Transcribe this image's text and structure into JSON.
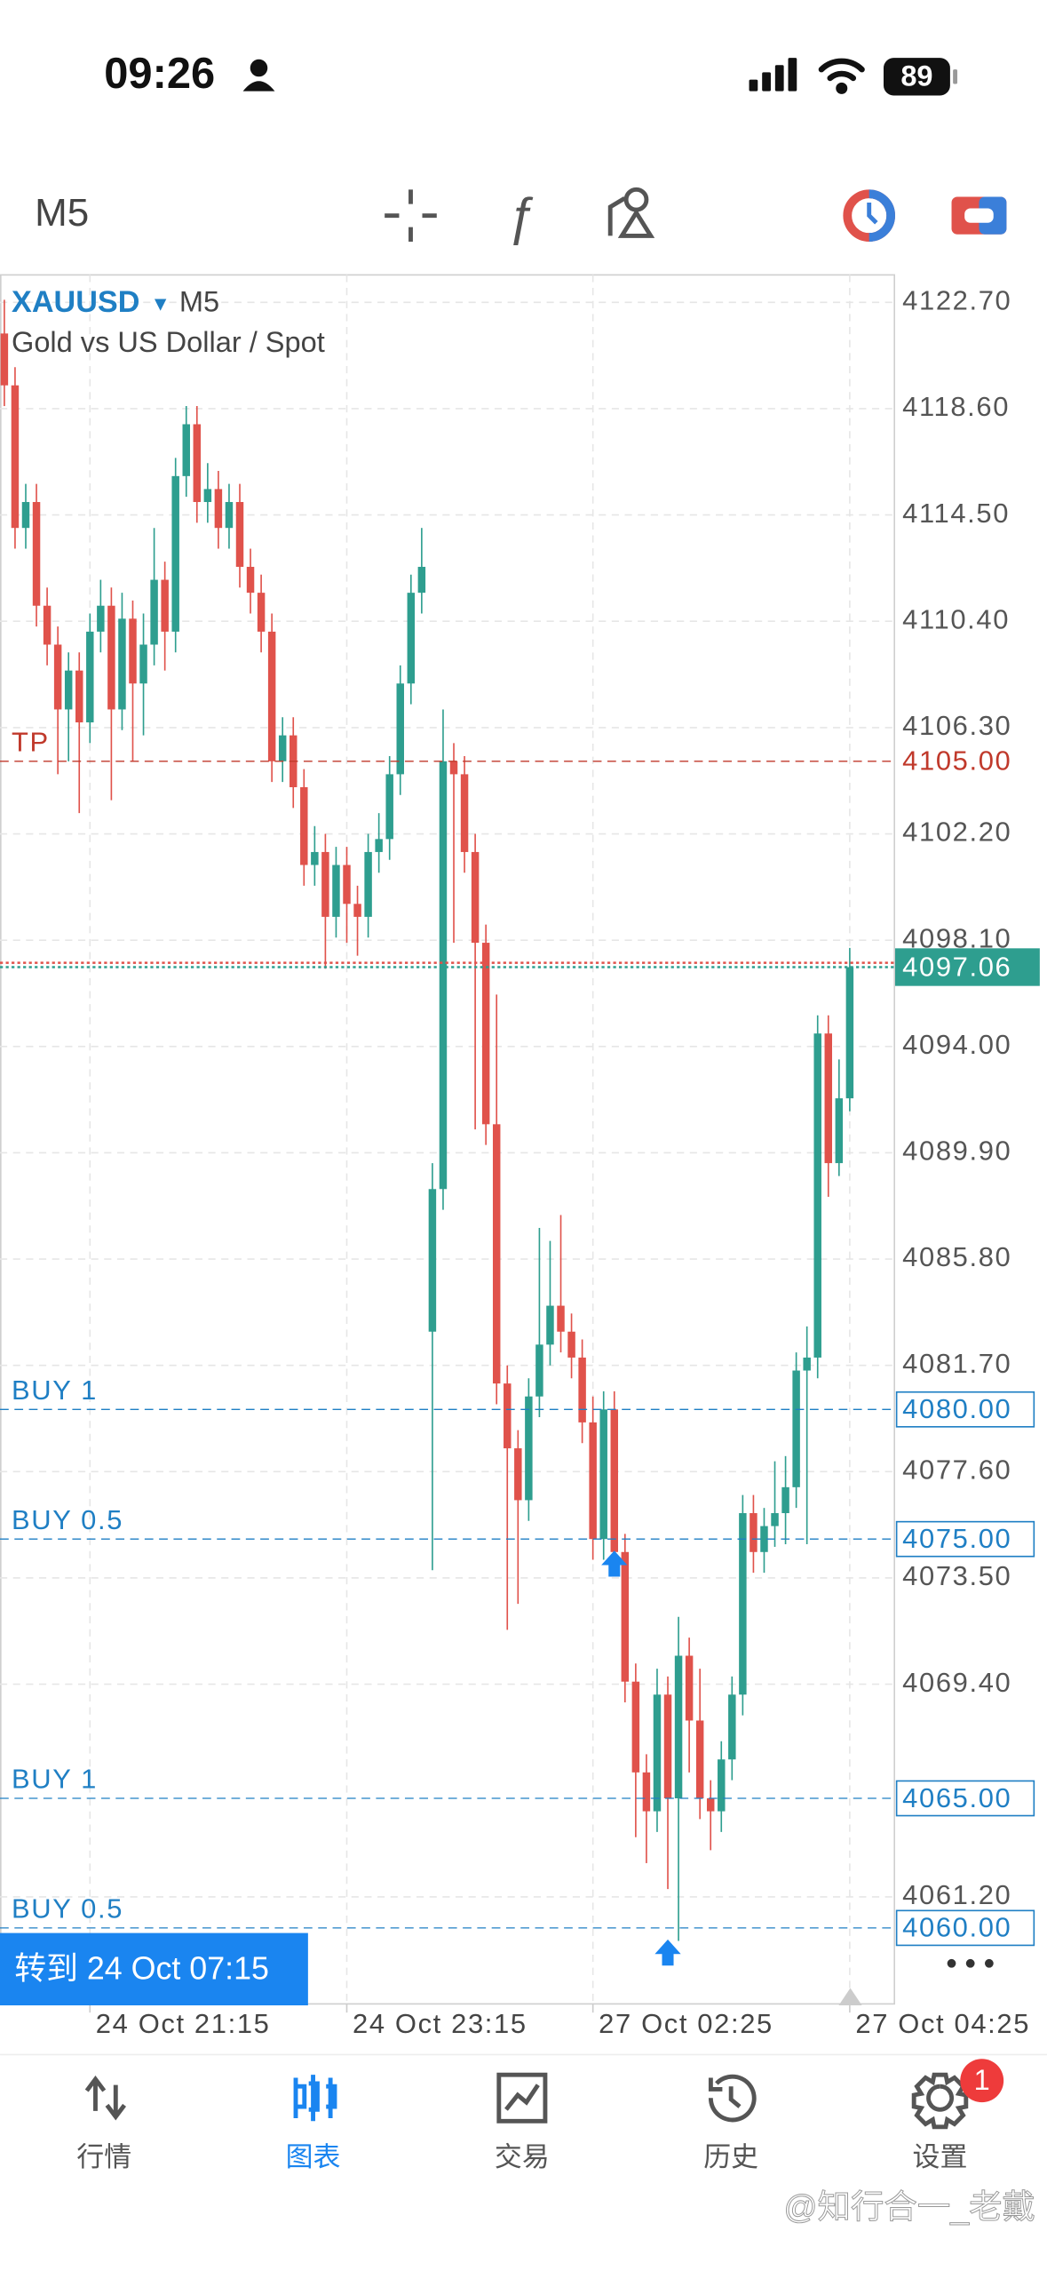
{
  "status_bar": {
    "time": "09:26",
    "battery": "89"
  },
  "toolbar": {
    "timeframe": "M5"
  },
  "chart_data": {
    "type": "candlestick",
    "title": "XAUUSD",
    "timeframe": "M5",
    "subtitle": "Gold vs US Dollar / Spot",
    "up_color": "#2e9e8f",
    "down_color": "#e0524b",
    "grid": true,
    "ylim": [
      4057.07,
      4123.76
    ],
    "yticks": [
      {
        "value": 4122.7,
        "label": "4122.70"
      },
      {
        "value": 4118.6,
        "label": "4118.60"
      },
      {
        "value": 4114.5,
        "label": "4114.50"
      },
      {
        "value": 4110.4,
        "label": "4110.40"
      },
      {
        "value": 4106.3,
        "label": "4106.30"
      },
      {
        "value": 4102.2,
        "label": "4102.20"
      },
      {
        "value": 4098.1,
        "label": "4098.10"
      },
      {
        "value": 4094,
        "label": "4094.00"
      },
      {
        "value": 4089.9,
        "label": "4089.90"
      },
      {
        "value": 4085.8,
        "label": "4085.80"
      },
      {
        "value": 4081.7,
        "label": "4081.70"
      },
      {
        "value": 4077.6,
        "label": "4077.60"
      },
      {
        "value": 4073.5,
        "label": "4073.50"
      },
      {
        "value": 4069.4,
        "label": "4069.40"
      },
      {
        "value": 4061.2,
        "label": "4061.20"
      }
    ],
    "xticks": [
      {
        "value": 8,
        "label": "24 Oct 21:15"
      },
      {
        "value": 32,
        "label": "24 Oct 23:15"
      },
      {
        "value": 55,
        "label": "27 Oct 02:25"
      },
      {
        "value": 79,
        "label": "27 Oct 04:25"
      }
    ],
    "open": [
      4121.5,
      4119.5,
      4114,
      4115,
      4111,
      4109.5,
      4107,
      4108.5,
      4106.5,
      4110,
      4111,
      4107,
      4110.5,
      4108,
      4109.5,
      4112,
      4110,
      4116,
      4118,
      4115,
      4115.5,
      4114,
      4115,
      4112.5,
      4111.5,
      4110,
      4105,
      4106,
      4104,
      4101,
      4101.5,
      4099,
      4101,
      4099.5,
      4099,
      4101.5,
      4102,
      4104.5,
      4108,
      4111.5,
      4083,
      4088.5,
      4105,
      4104.5,
      4101.5,
      4098,
      4091,
      4081,
      4078.5,
      4076.5,
      4080.5,
      4082.5,
      4084,
      4083,
      4082,
      4079.5,
      4075,
      4080,
      4074.5,
      4069.5,
      4066,
      4064.5,
      4069,
      4065,
      4070.5,
      4068,
      4065,
      4064.5,
      4066.5,
      4069,
      4076,
      4074.5,
      4075.5,
      4076,
      4077,
      4081.5,
      4082,
      4094.5,
      4089.5,
      4092
    ],
    "high": [
      4122.8,
      4120.2,
      4115.7,
      4115.7,
      4111.7,
      4110.2,
      4109.2,
      4109.2,
      4110.7,
      4112,
      4111.7,
      4111.5,
      4111.2,
      4110.7,
      4114,
      4112.7,
      4116.7,
      4118.7,
      4118.7,
      4116.5,
      4116.2,
      4115.7,
      4115.7,
      4113.2,
      4112.2,
      4110.7,
      4106.7,
      4106.7,
      4104.7,
      4102.5,
      4102.2,
      4101.7,
      4101.7,
      4100.2,
      4102.2,
      4103,
      4105.2,
      4108.7,
      4112.2,
      4114,
      4089.5,
      4107,
      4105.7,
      4105.2,
      4102.2,
      4098.7,
      4096,
      4081.7,
      4079.2,
      4081.2,
      4087,
      4086.5,
      4087.5,
      4083.7,
      4082.7,
      4080.5,
      4080.7,
      4080.7,
      4075.2,
      4070.2,
      4066.7,
      4070,
      4069.7,
      4072,
      4071.2,
      4070,
      4065.7,
      4067.2,
      4069.7,
      4076.7,
      4076.7,
      4076.2,
      4078,
      4078.2,
      4082.2,
      4083.2,
      4095.2,
      4095.2,
      4093.5,
      4097.8
    ],
    "low": [
      4118.7,
      4113.2,
      4113.2,
      4110.2,
      4108.7,
      4104.5,
      4105,
      4103,
      4105.7,
      4109.2,
      4103.5,
      4106.2,
      4105,
      4106,
      4108.7,
      4108.5,
      4109.2,
      4115.2,
      4114.2,
      4114.2,
      4113.2,
      4113.2,
      4111.7,
      4110.7,
      4109.2,
      4104.2,
      4104.2,
      4103.2,
      4100.2,
      4100.2,
      4097,
      4098.2,
      4098,
      4097.5,
      4098.2,
      4100.7,
      4101.2,
      4103.7,
      4107.2,
      4110.7,
      4073.8,
      4087.7,
      4098,
      4100.7,
      4090.8,
      4090.2,
      4080.2,
      4071.5,
      4072.5,
      4075.7,
      4079.7,
      4081.7,
      4082.2,
      4081.2,
      4078.7,
      4074.2,
      4074.2,
      4073.7,
      4068.7,
      4063.5,
      4062.5,
      4063.7,
      4061.5,
      4059.5,
      4066,
      4064.2,
      4063,
      4063.7,
      4065.7,
      4068.2,
      4073.7,
      4073.7,
      4074.7,
      4074.8,
      4076.2,
      4074.8,
      4081.2,
      4088.2,
      4089,
      4091.5
    ],
    "close": [
      4119.5,
      4114,
      4115,
      4111,
      4109.5,
      4107,
      4108.5,
      4106.5,
      4110,
      4111,
      4107,
      4110.5,
      4108,
      4109.5,
      4112,
      4110,
      4116,
      4118,
      4115,
      4115.5,
      4114,
      4115,
      4112.5,
      4111.5,
      4110,
      4105,
      4106,
      4104,
      4101,
      4101.5,
      4099,
      4101,
      4099.5,
      4099,
      4101.5,
      4102,
      4104.5,
      4108,
      4111.5,
      4112.5,
      4088.5,
      4105,
      4104.5,
      4101.5,
      4098,
      4091,
      4081,
      4078.5,
      4076.5,
      4080.5,
      4082.5,
      4084,
      4083,
      4082,
      4079.5,
      4075,
      4080,
      4074.5,
      4069.5,
      4066,
      4064.5,
      4069,
      4065,
      4070.5,
      4068,
      4065,
      4064.5,
      4066.5,
      4069,
      4076,
      4074.5,
      4075.5,
      4076,
      4077,
      4081.5,
      4082,
      4094.5,
      4089.5,
      4092,
      4097.06
    ],
    "last": 4097.06,
    "last_color": "#2e9e8f",
    "levels": [
      {
        "name": "TP",
        "value": 4105,
        "value_label": "4105.00",
        "color": "#c0392b",
        "boxed": false
      },
      {
        "name": "BUY 1",
        "value": 4080,
        "value_label": "4080.00",
        "color": "#1f7fc4",
        "boxed": true
      },
      {
        "name": "BUY 0.5",
        "value": 4075,
        "value_label": "4075.00",
        "color": "#1f7fc4",
        "boxed": true
      },
      {
        "name": "BUY 1",
        "value": 4065,
        "value_label": "4065.00",
        "color": "#1f7fc4",
        "boxed": true
      },
      {
        "name": "BUY 0.5",
        "value": 4060,
        "value_label": "4060.00",
        "color": "#1f7fc4",
        "boxed": true
      }
    ],
    "trades": [
      {
        "bar": 57,
        "price": 4075
      },
      {
        "bar": 62,
        "price": 4060
      }
    ],
    "goto_button": "转到 24 Oct 07:15"
  },
  "tabs": [
    {
      "label": "行情"
    },
    {
      "label": "图表"
    },
    {
      "label": "交易"
    },
    {
      "label": "历史"
    },
    {
      "label": "设置",
      "badge": 1
    }
  ],
  "active_tab": 1,
  "watermark": "@知行合一_老戴"
}
